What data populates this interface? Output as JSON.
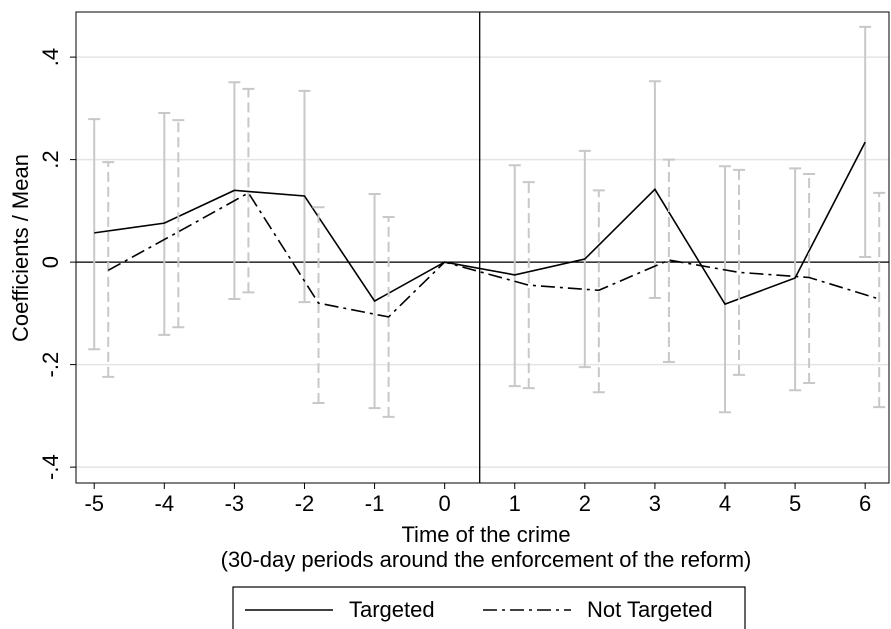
{
  "chart_data": {
    "type": "line",
    "y_label": "Coefficients / Mean",
    "x_label": [
      "Time of the crime",
      "(30-day periods around the enforcement of the reform)"
    ],
    "xlim": [
      -5.26,
      6.34
    ],
    "ylim": [
      -0.431,
      0.488
    ],
    "xticks": [
      -5,
      -4,
      -3,
      -2,
      -1,
      0,
      1,
      2,
      3,
      4,
      5,
      6
    ],
    "yticks": [
      {
        "value": -0.4,
        "label": "-.4"
      },
      {
        "value": -0.2,
        "label": "-.2"
      },
      0,
      {
        "value": 0.2,
        "label": ".2"
      },
      {
        "value": 0.4,
        "label": ".4"
      }
    ],
    "grid": true,
    "vline": 0.5,
    "hline": 0,
    "series": [
      {
        "name": "Targeted",
        "color": "#000000",
        "ci_color": "#c8c8c8",
        "dash": "solid",
        "x": [
          -5,
          -4,
          -3,
          -2,
          -1,
          0,
          1,
          2,
          3,
          4,
          5,
          6
        ],
        "values": [
          0.057,
          0.076,
          0.14,
          0.129,
          -0.076,
          0,
          -0.025,
          0.006,
          0.142,
          -0.082,
          -0.031,
          0.234
        ],
        "lower": [
          -0.17,
          -0.142,
          -0.072,
          -0.078,
          -0.285,
          null,
          -0.242,
          -0.205,
          -0.07,
          -0.293,
          -0.25,
          0.01
        ],
        "upper": [
          0.279,
          0.291,
          0.351,
          0.334,
          0.133,
          null,
          0.189,
          0.217,
          0.353,
          0.187,
          0.183,
          0.459
        ]
      },
      {
        "name": "Not Targeted",
        "color": "#000000",
        "ci_color": "#c8c8c8",
        "dash": "dashdot",
        "x": [
          -4.8,
          -3.8,
          -2.8,
          -1.8,
          -0.8,
          0,
          1.2,
          2.2,
          3.2,
          4.2,
          5.2,
          6.2
        ],
        "values": [
          -0.016,
          0.059,
          0.135,
          -0.08,
          -0.107,
          0,
          -0.045,
          -0.055,
          0.004,
          -0.02,
          -0.03,
          -0.072
        ],
        "lower": [
          -0.224,
          -0.127,
          -0.059,
          -0.275,
          -0.302,
          null,
          -0.246,
          -0.254,
          -0.195,
          -0.22,
          -0.236,
          -0.283
        ],
        "upper": [
          0.195,
          0.277,
          0.338,
          0.107,
          0.088,
          null,
          0.156,
          0.14,
          0.2,
          0.18,
          0.172,
          0.135
        ]
      }
    ]
  }
}
